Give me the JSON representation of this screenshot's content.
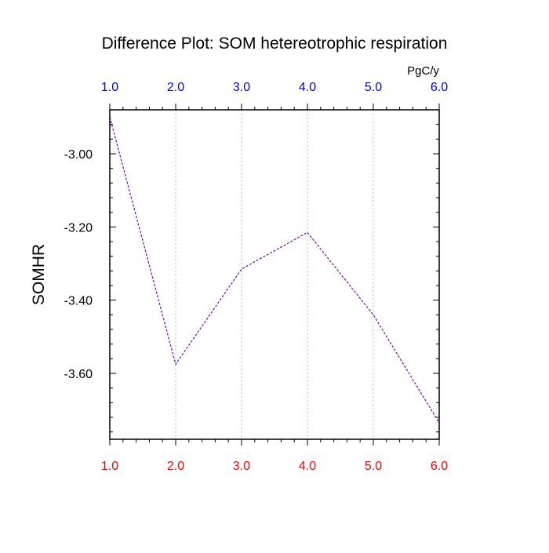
{
  "chart_data": {
    "type": "line",
    "title": "Difference Plot: SOM hetereotrophic respiration",
    "units": "PgC/y",
    "ylabel": "SOMHR",
    "xlabel": "",
    "x": [
      1.0,
      2.0,
      3.0,
      4.0,
      5.0,
      6.0
    ],
    "xlim": [
      1.0,
      6.0
    ],
    "ylim": [
      -3.78,
      -2.88
    ],
    "x_tick_labels": [
      "1.0",
      "2.0",
      "3.0",
      "4.0",
      "5.0",
      "6.0"
    ],
    "y_ticks": [
      -3.0,
      -3.2,
      -3.4,
      -3.6
    ],
    "y_tick_labels": [
      "-3.00",
      "-3.20",
      "-3.40",
      "-3.60"
    ],
    "series": [
      {
        "values": [
          -2.9,
          -3.575,
          -3.315,
          -3.215,
          -3.44,
          -3.735
        ],
        "color": "#6a0dad",
        "line_style": "dashed"
      }
    ],
    "grid": "vertical-dotted",
    "legend": "none",
    "colors": {
      "top_axis_labels": "#0000ff",
      "bottom_axis_labels": "#ff0000",
      "line": "#6a0dad",
      "grid": "#bbbbbb"
    }
  }
}
